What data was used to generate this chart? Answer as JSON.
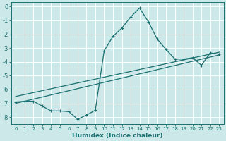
{
  "line1_x": [
    0,
    1,
    2,
    3,
    4,
    5,
    6,
    7,
    8,
    9,
    10,
    11,
    12,
    13,
    14,
    15,
    16,
    17,
    18,
    19,
    20,
    21,
    22,
    23
  ],
  "line1_y": [
    -6.9,
    -6.85,
    -6.85,
    -7.2,
    -7.55,
    -7.55,
    -7.6,
    -8.15,
    -7.85,
    -7.5,
    -3.2,
    -2.15,
    -1.55,
    -0.75,
    -0.1,
    -1.1,
    -2.35,
    -3.1,
    -3.8,
    -3.8,
    -3.7,
    -4.25,
    -3.35,
    -3.45
  ],
  "line2_x": [
    0,
    23
  ],
  "line2_y": [
    -7.0,
    -3.5
  ],
  "line3_x": [
    0,
    23
  ],
  "line3_y": [
    -6.5,
    -3.3
  ],
  "bg_color": "#cde8e8",
  "grid_color": "#b8d8d8",
  "line_color": "#1a7070",
  "xlabel": "Humidex (Indice chaleur)",
  "ylim": [
    -8.5,
    0.3
  ],
  "xlim": [
    -0.5,
    23.5
  ],
  "yticks": [
    0,
    -1,
    -2,
    -3,
    -4,
    -5,
    -6,
    -7,
    -8
  ],
  "xticks": [
    0,
    1,
    2,
    3,
    4,
    5,
    6,
    7,
    8,
    9,
    10,
    11,
    12,
    13,
    14,
    15,
    16,
    17,
    18,
    19,
    20,
    21,
    22,
    23
  ]
}
